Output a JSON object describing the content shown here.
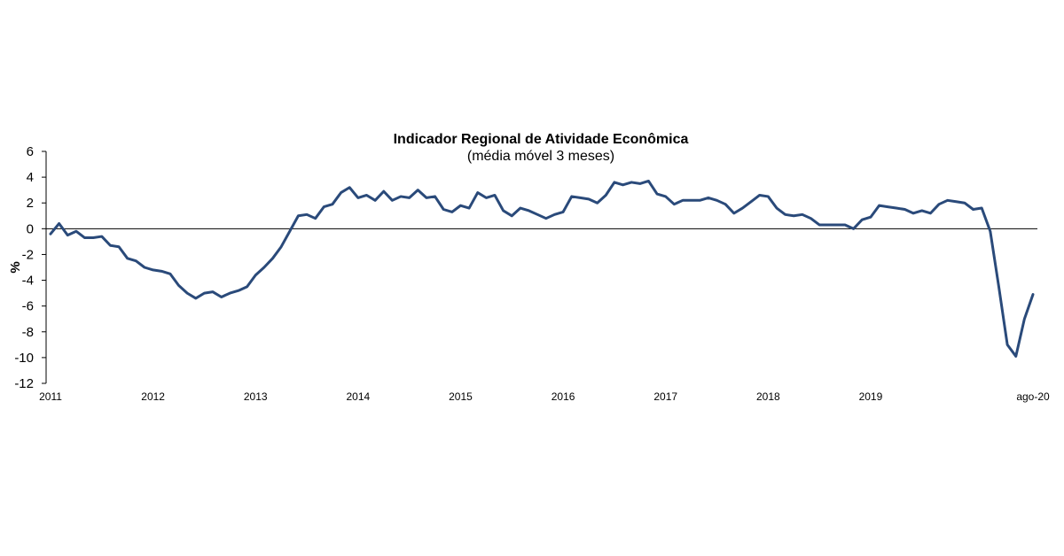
{
  "chart_data": {
    "type": "line",
    "title": "Indicador Regional de Atividade Econômica",
    "subtitle": "(média móvel 3 meses)",
    "ylabel": "%",
    "xlabel": "",
    "ylim": [
      -12,
      6
    ],
    "yticks": [
      6,
      4,
      2,
      0,
      -2,
      -4,
      -6,
      -8,
      -10,
      -12
    ],
    "x_tick_labels": [
      {
        "label": "2011",
        "index": 0
      },
      {
        "label": "2012",
        "index": 12
      },
      {
        "label": "2013",
        "index": 24
      },
      {
        "label": "2014",
        "index": 36
      },
      {
        "label": "2015",
        "index": 48
      },
      {
        "label": "2016",
        "index": 60
      },
      {
        "label": "2017",
        "index": 72
      },
      {
        "label": "2018",
        "index": 84
      },
      {
        "label": "2019",
        "index": 96
      },
      {
        "label": "ago-20",
        "index": 115
      }
    ],
    "grid": false,
    "line_color": "#2a4a7a",
    "series": [
      {
        "values": [
          -0.4,
          0.4,
          -0.5,
          -0.2,
          -0.7,
          -0.7,
          -0.6,
          -1.3,
          -1.4,
          -2.3,
          -2.5,
          -3.0,
          -3.2,
          -3.3,
          -3.5,
          -4.4,
          -5.0,
          -5.4,
          -5.0,
          -4.9,
          -5.3,
          -5.0,
          -4.8,
          -4.5,
          -3.6,
          -3.0,
          -2.3,
          -1.4,
          -0.2,
          1.0,
          1.1,
          0.8,
          1.7,
          1.9,
          2.8,
          3.2,
          2.4,
          2.6,
          2.2,
          2.9,
          2.2,
          2.5,
          2.4,
          3.0,
          2.4,
          2.5,
          1.5,
          1.3,
          1.8,
          1.6,
          2.8,
          2.4,
          2.6,
          1.4,
          1.0,
          1.6,
          1.4,
          1.1,
          0.8,
          1.1,
          1.3,
          2.5,
          2.4,
          2.3,
          2.0,
          2.6,
          3.6,
          3.4,
          3.6,
          3.5,
          3.7,
          2.7,
          2.5,
          1.9,
          2.2,
          2.2,
          2.2,
          2.4,
          2.2,
          1.9,
          1.2,
          1.6,
          2.1,
          2.6,
          2.5,
          1.6,
          1.1,
          1.0,
          1.1,
          0.8,
          0.3,
          0.3,
          0.3,
          0.3,
          0.0,
          0.7,
          0.9,
          1.8,
          1.7,
          1.6,
          1.5,
          1.2,
          1.4,
          1.2,
          1.9,
          2.2,
          2.1,
          2.0,
          1.5,
          1.6,
          -0.2,
          -4.5,
          -9.0,
          -9.9,
          -7.0,
          -5.1
        ]
      }
    ]
  }
}
